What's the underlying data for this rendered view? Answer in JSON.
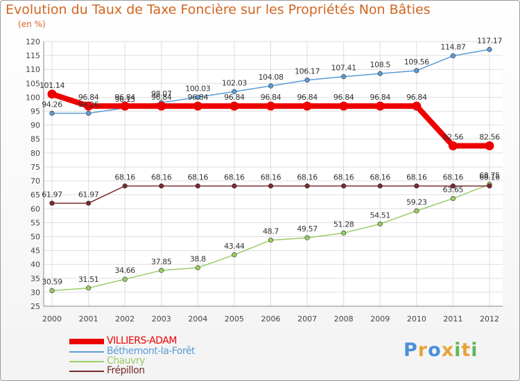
{
  "chart_data": {
    "type": "line",
    "title": "Evolution du Taux de Taxe Foncière sur les Propriétés Non Bâties",
    "ylabel": "(en %)",
    "xlabel": "",
    "ylim": [
      25,
      120
    ],
    "ytick_step": 5,
    "grid": true,
    "categories": [
      "2000",
      "2001",
      "2002",
      "2003",
      "2004",
      "2005",
      "2006",
      "2007",
      "2008",
      "2009",
      "2010",
      "2011",
      "2012"
    ],
    "series": [
      {
        "name": "VILLIERS-ADAM",
        "color": "#ee0000",
        "values": [
          101.14,
          96.84,
          96.84,
          96.84,
          96.84,
          96.84,
          96.84,
          96.84,
          96.84,
          96.84,
          96.84,
          82.56,
          82.56
        ],
        "labels": [
          "101.14",
          "96.84",
          "96.84",
          "96.84",
          "96.84",
          "96.84",
          "96.84",
          "96.84",
          "96.84",
          "96.84",
          "96.84",
          "82.56",
          "82.56"
        ]
      },
      {
        "name": "Béthemont-la-Forêt",
        "color": "#5b9bd5",
        "values": [
          94.26,
          94.26,
          96.15,
          98.07,
          100.03,
          102.03,
          104.08,
          106.17,
          107.41,
          108.5,
          109.56,
          114.87,
          117.17
        ],
        "labels": [
          "94.26",
          "94.26",
          "96.15",
          "98.07",
          "100.03",
          "102.03",
          "104.08",
          "106.17",
          "107.41",
          "108.5",
          "109.56",
          "114.87",
          "117.17"
        ]
      },
      {
        "name": "Chauvry",
        "color": "#99cc66",
        "values": [
          30.59,
          31.51,
          34.66,
          37.85,
          38.8,
          43.44,
          48.7,
          49.57,
          51.28,
          54.51,
          59.23,
          63.65,
          68.75
        ],
        "labels": [
          "30.59",
          "31.51",
          "34.66",
          "37.85",
          "38.8",
          "43.44",
          "48.7",
          "49.57",
          "51.28",
          "54.51",
          "59.23",
          "63.65",
          "68.75"
        ]
      },
      {
        "name": "Frépillon",
        "color": "#7a2a2a",
        "values": [
          61.97,
          61.97,
          68.16,
          68.16,
          68.16,
          68.16,
          68.16,
          68.16,
          68.16,
          68.16,
          68.16,
          68.16,
          68.16
        ],
        "labels": [
          "61.97",
          "61.97",
          "68.16",
          "68.16",
          "68.16",
          "68.16",
          "68.16",
          "68.16",
          "68.16",
          "68.16",
          "68.16",
          "68.16",
          "68.16"
        ]
      }
    ],
    "legend_position": "bottom-left"
  },
  "branding": {
    "letters": [
      "P",
      "r",
      "o",
      "x",
      "i",
      "t",
      "i"
    ],
    "colors": [
      "#4a90d9",
      "#e8a33c",
      "#4a90d9",
      "#e8a33c",
      "#5cb85c",
      "#e8a33c",
      "#5cb85c"
    ]
  }
}
